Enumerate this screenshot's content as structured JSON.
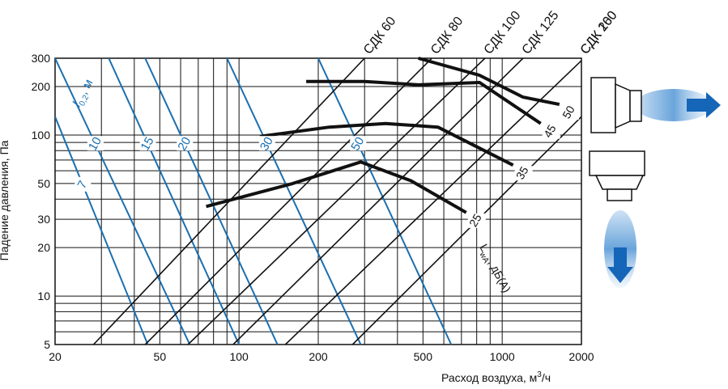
{
  "chart_data": {
    "type": "line",
    "xscale": "log",
    "yscale": "log",
    "xlim": [
      20,
      2000
    ],
    "ylim": [
      5,
      300
    ],
    "xticks": [
      "20",
      "50",
      "100",
      "200",
      "500",
      "1000",
      "2000"
    ],
    "yticks": [
      "5",
      "10",
      "20",
      "30",
      "50",
      "100",
      "200",
      "300"
    ],
    "xlabel_main": "Расход воздуха, м",
    "xlabel_sup": "3",
    "xlabel_tail": "/ч",
    "ylabel": "Падение давления, Па",
    "models": [
      {
        "name": "СДК 60",
        "points": [
          [
            28,
            5
          ],
          [
            300,
            300
          ]
        ]
      },
      {
        "name": "СДК 80",
        "points": [
          [
            44,
            5
          ],
          [
            540,
            300
          ]
        ]
      },
      {
        "name": "СДК 100",
        "points": [
          [
            64,
            5
          ],
          [
            860,
            300
          ]
        ]
      },
      {
        "name": "СДК 125",
        "points": [
          [
            95,
            5
          ],
          [
            1200,
            300
          ]
        ]
      },
      {
        "name": "СДК 160",
        "points": [
          [
            150,
            5
          ],
          [
            2000,
            290
          ]
        ]
      },
      {
        "name": "СДК 200",
        "points": [
          [
            270,
            5
          ],
          [
            2000,
            130
          ]
        ]
      }
    ],
    "throw_lines": [
      {
        "label": "7",
        "points": [
          [
            20,
            130
          ],
          [
            45,
            5
          ]
        ]
      },
      {
        "label": "10",
        "points": [
          [
            20,
            300
          ],
          [
            65,
            5
          ]
        ]
      },
      {
        "label": "15",
        "points": [
          [
            32,
            300
          ],
          [
            100,
            5
          ]
        ]
      },
      {
        "label": "20",
        "points": [
          [
            44,
            300
          ],
          [
            140,
            5
          ]
        ]
      },
      {
        "label": "30",
        "points": [
          [
            90,
            300
          ],
          [
            290,
            5
          ]
        ]
      },
      {
        "label": "50",
        "points": [
          [
            200,
            300
          ],
          [
            640,
            5
          ]
        ]
      }
    ],
    "throw_axis_label": "l",
    "throw_axis_sub": "0,2",
    "throw_axis_unit": ", м",
    "sound_curves": [
      {
        "label": "25",
        "points": [
          [
            75,
            36
          ],
          [
            160,
            50
          ],
          [
            290,
            68
          ],
          [
            450,
            52
          ],
          [
            730,
            33
          ]
        ]
      },
      {
        "label": "35",
        "points": [
          [
            120,
            98
          ],
          [
            220,
            112
          ],
          [
            360,
            118
          ],
          [
            570,
            112
          ],
          [
            1100,
            65
          ]
        ]
      },
      {
        "label": "45",
        "points": [
          [
            180,
            215
          ],
          [
            300,
            215
          ],
          [
            480,
            205
          ],
          [
            820,
            212
          ],
          [
            1400,
            118
          ]
        ]
      },
      {
        "label": "50",
        "points": [
          [
            480,
            300
          ],
          [
            820,
            235
          ],
          [
            1200,
            172
          ],
          [
            1650,
            155
          ]
        ]
      }
    ],
    "sound_axis_label_main": "L",
    "sound_axis_label_sub": "wA",
    "sound_axis_label_tail": ", дБ(А)",
    "colors": {
      "grid": "#111111",
      "model_lines": "#111111",
      "throw_lines": "#1a6fb0",
      "sound_curves": "#111111",
      "airflow_arrow": "#1565b8",
      "airflow_glow": "#9cc7ea"
    }
  }
}
